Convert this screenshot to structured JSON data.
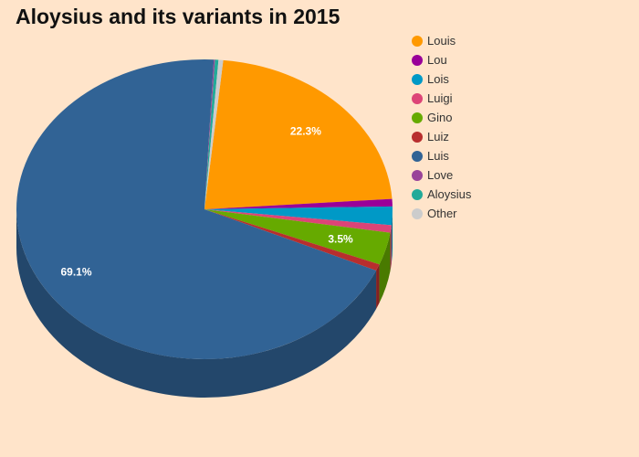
{
  "chart_data": {
    "type": "pie",
    "title": "Aloysius and its variants in 2015",
    "slices": [
      {
        "name": "Louis",
        "value": 22.3,
        "color": "#ff9900",
        "label": "22.3%"
      },
      {
        "name": "Lou",
        "value": 0.8,
        "color": "#990099",
        "label": ""
      },
      {
        "name": "Lois",
        "value": 2.0,
        "color": "#0099c6",
        "label": ""
      },
      {
        "name": "Luigi",
        "value": 0.8,
        "color": "#dd4477",
        "label": ""
      },
      {
        "name": "Gino",
        "value": 3.5,
        "color": "#66aa00",
        "label": "3.5%"
      },
      {
        "name": "Luiz",
        "value": 0.7,
        "color": "#b82e2e",
        "label": ""
      },
      {
        "name": "Luis",
        "value": 69.1,
        "color": "#316395",
        "label": "69.1%"
      },
      {
        "name": "Love",
        "value": 0.1,
        "color": "#994499",
        "label": ""
      },
      {
        "name": "Aloysius",
        "value": 0.3,
        "color": "#22aa99",
        "label": ""
      },
      {
        "name": "Other",
        "value": 0.4,
        "color": "#cccccc",
        "label": ""
      }
    ],
    "is_3d": true,
    "legend_position": "right"
  }
}
